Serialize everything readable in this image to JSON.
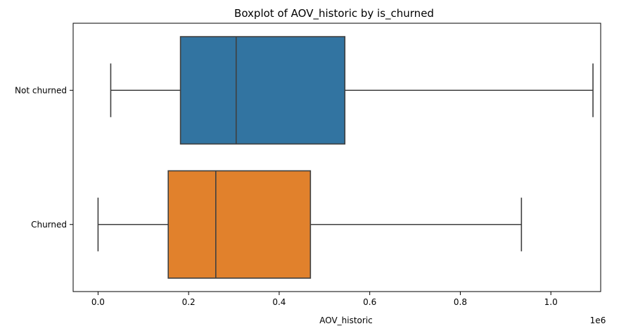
{
  "chart_data": {
    "type": "boxplot",
    "title": "Boxplot of AOV_historic by is_churned",
    "xlabel": "AOV_historic",
    "ylabel": "",
    "x_offset_label": "1e6",
    "xlim": [
      -0.055,
      1.11
    ],
    "x_ticks": [
      0.0,
      0.2,
      0.4,
      0.6,
      0.8,
      1.0
    ],
    "x_tick_labels": [
      "0.0",
      "0.2",
      "0.4",
      "0.6",
      "0.8",
      "1.0"
    ],
    "categories": [
      "Not churned",
      "Churned"
    ],
    "boxes": [
      {
        "category": "Not churned",
        "whisker_low": 0.028,
        "q1": 0.182,
        "median": 0.305,
        "q3": 0.545,
        "whisker_high": 1.093,
        "color": "#3274a1"
      },
      {
        "category": "Churned",
        "whisker_low": 0.0,
        "q1": 0.155,
        "median": 0.26,
        "q3": 0.469,
        "whisker_high": 0.935,
        "color": "#e1812c"
      }
    ],
    "grid": false,
    "legend": "none"
  }
}
